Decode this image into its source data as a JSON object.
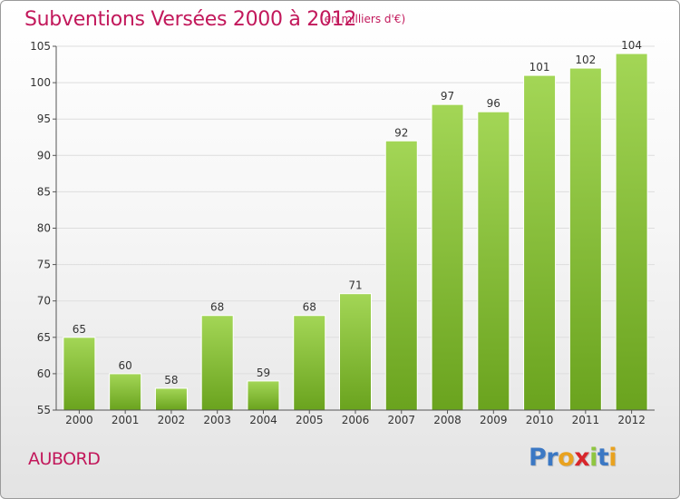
{
  "title": "Subventions Versées 2000 à 2012",
  "subtitle": "(en milliers d'€)",
  "place": "AUBORD",
  "brand": {
    "letters": [
      "P",
      "r",
      "o",
      "x",
      "i",
      "t",
      "i"
    ],
    "colors": [
      "#3b78c4",
      "#3b78c4",
      "#e9a21f",
      "#d8262b",
      "#8fc640",
      "#3b78c4",
      "#e9a21f"
    ]
  },
  "colors": {
    "bar_top": "#a3d656",
    "bar_bottom": "#6aa31e",
    "title": "#c2185b",
    "grid": "#dddddd",
    "axis": "#555555"
  },
  "chart_data": {
    "type": "bar",
    "categories": [
      "2000",
      "2001",
      "2002",
      "2003",
      "2004",
      "2005",
      "2006",
      "2007",
      "2008",
      "2009",
      "2010",
      "2011",
      "2012"
    ],
    "values": [
      65,
      60,
      58,
      68,
      59,
      68,
      71,
      92,
      97,
      96,
      101,
      102,
      104
    ],
    "title": "Subventions Versées 2000 à 2012",
    "subtitle": "(en milliers d'€)",
    "xlabel": "",
    "ylabel": "",
    "ylim": [
      55,
      105
    ],
    "yticks": [
      55,
      60,
      65,
      70,
      75,
      80,
      85,
      90,
      95,
      100,
      105
    ],
    "grid": true,
    "data_labels": true
  }
}
